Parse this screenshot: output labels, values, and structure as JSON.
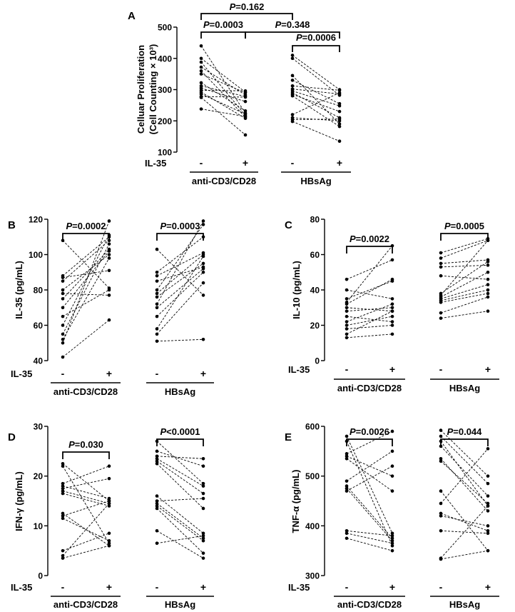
{
  "chart_data": [
    {
      "panel": "A",
      "type": "scatter",
      "ylabel": [
        "Celluar Proliferation",
        "(Cell Counting × 10³)"
      ],
      "ylim": [
        100,
        500
      ],
      "yticks": [
        100,
        200,
        300,
        400,
        500
      ],
      "treatment": "IL-35",
      "conditions": [
        "-",
        "+"
      ],
      "groups": [
        {
          "name": "anti-CD3/CD28",
          "pairs": [
            [
              440,
              225
            ],
            [
              400,
              292
            ],
            [
              388,
              218
            ],
            [
              372,
              283
            ],
            [
              360,
              212
            ],
            [
              350,
              290
            ],
            [
              322,
              232
            ],
            [
              312,
              278
            ],
            [
              305,
              262
            ],
            [
              298,
              296
            ],
            [
              292,
              208
            ],
            [
              286,
              222
            ],
            [
              278,
              276
            ],
            [
              275,
              155
            ],
            [
              238,
              214
            ]
          ]
        },
        {
          "name": "HBsAg",
          "pairs": [
            [
              410,
              300
            ],
            [
              400,
              282
            ],
            [
              345,
              190
            ],
            [
              330,
              255
            ],
            [
              312,
              298
            ],
            [
              302,
              286
            ],
            [
              296,
              248
            ],
            [
              290,
              210
            ],
            [
              285,
              230
            ],
            [
              280,
              182
            ],
            [
              220,
              290
            ],
            [
              210,
              200
            ],
            [
              204,
              206
            ],
            [
              198,
              135
            ]
          ]
        }
      ],
      "comparisons": [
        {
          "between": [
            0,
            2
          ],
          "p": "P",
          "text": "=0.162"
        },
        {
          "between": [
            0,
            1
          ],
          "p": "P",
          "text": "=0.0003"
        },
        {
          "between": [
            1,
            3
          ],
          "p": "P",
          "text": "=0.348"
        },
        {
          "between": [
            2,
            3
          ],
          "p": "P",
          "text": "=0.0006"
        }
      ]
    },
    {
      "panel": "B",
      "type": "scatter",
      "ylabel": [
        "IL-35 (pg/mL)"
      ],
      "ylim": [
        40,
        120
      ],
      "yticks": [
        40,
        60,
        80,
        100,
        120
      ],
      "treatment": "IL-35",
      "conditions": [
        "-",
        "+"
      ],
      "groups": [
        {
          "name": "anti-CD3/CD28",
          "pairs": [
            [
              108,
              81
            ],
            [
              88,
              110
            ],
            [
              87,
              91
            ],
            [
              85,
              108
            ],
            [
              80,
              100
            ],
            [
              78,
              77
            ],
            [
              75,
              103
            ],
            [
              70,
              102
            ],
            [
              65,
              80
            ],
            [
              60,
              111
            ],
            [
              55,
              106
            ],
            [
              52,
              98
            ],
            [
              50,
              119
            ],
            [
              42,
              63
            ]
          ]
        },
        {
          "name": "HBsAg",
          "pairs": [
            [
              103,
              77
            ],
            [
              90,
              110
            ],
            [
              88,
              101
            ],
            [
              85,
              93
            ],
            [
              80,
              117
            ],
            [
              78,
              100
            ],
            [
              76,
              95
            ],
            [
              72,
              119
            ],
            [
              70,
              92
            ],
            [
              65,
              90
            ],
            [
              58,
              99
            ],
            [
              55,
              84
            ],
            [
              51,
              52
            ]
          ]
        }
      ],
      "comparisons": [
        {
          "between": [
            0,
            1
          ],
          "p": "P",
          "text": "=0.0002"
        },
        {
          "between": [
            2,
            3
          ],
          "p": "P",
          "text": "=0.0003"
        }
      ]
    },
    {
      "panel": "C",
      "type": "scatter",
      "ylabel": [
        "IL-10 (pg/mL)"
      ],
      "ylim": [
        0,
        80
      ],
      "yticks": [
        0,
        20,
        40,
        60,
        80
      ],
      "treatment": "IL-35",
      "conditions": [
        "-",
        "+"
      ],
      "groups": [
        {
          "name": "anti-CD3/CD28",
          "pairs": [
            [
              46,
              57
            ],
            [
              40,
              35
            ],
            [
              35,
              45
            ],
            [
              33,
              65
            ],
            [
              32,
              46
            ],
            [
              30,
              28
            ],
            [
              28,
              30
            ],
            [
              25,
              22
            ],
            [
              22,
              32
            ],
            [
              20,
              25
            ],
            [
              18,
              20
            ],
            [
              15,
              28
            ],
            [
              13,
              15
            ]
          ]
        },
        {
          "name": "HBsAg",
          "pairs": [
            [
              61,
              69
            ],
            [
              58,
              68
            ],
            [
              55,
              57
            ],
            [
              53,
              54
            ],
            [
              48,
              46
            ],
            [
              38,
              56
            ],
            [
              37,
              68
            ],
            [
              36,
              50
            ],
            [
              35,
              43
            ],
            [
              34,
              40
            ],
            [
              33,
              38
            ],
            [
              27,
              36
            ],
            [
              24,
              28
            ]
          ]
        }
      ],
      "comparisons": [
        {
          "between": [
            0,
            1
          ],
          "p": "P",
          "text": "=0.0022"
        },
        {
          "between": [
            2,
            3
          ],
          "p": "P",
          "text": "=0.0005"
        }
      ]
    },
    {
      "panel": "D",
      "type": "scatter",
      "ylabel": [
        "IFN-γ (pg/mL)"
      ],
      "ylim": [
        0,
        30
      ],
      "yticks": [
        0,
        10,
        20,
        30
      ],
      "treatment": "IL-35",
      "conditions": [
        "-",
        "+"
      ],
      "groups": [
        {
          "name": "anti-CD3/CD28",
          "pairs": [
            [
              22.5,
              15
            ],
            [
              22,
              6.5
            ],
            [
              18.5,
              22
            ],
            [
              18,
              15.5
            ],
            [
              17.5,
              19.5
            ],
            [
              17,
              14.5
            ],
            [
              16.5,
              14
            ],
            [
              12.5,
              6
            ],
            [
              12,
              15
            ],
            [
              11.5,
              7
            ],
            [
              5,
              8.5
            ],
            [
              4,
              14.5
            ],
            [
              3.5,
              6
            ]
          ]
        },
        {
          "name": "HBsAg",
          "pairs": [
            [
              27,
              18.5
            ],
            [
              25,
              22
            ],
            [
              24,
              23.5
            ],
            [
              23.5,
              18
            ],
            [
              23,
              16.5
            ],
            [
              22.5,
              13.5
            ],
            [
              16,
              8.5
            ],
            [
              15,
              15.5
            ],
            [
              14.5,
              7.5
            ],
            [
              14,
              7
            ],
            [
              13.5,
              4.5
            ],
            [
              9,
              3.5
            ],
            [
              6.5,
              8
            ]
          ]
        }
      ],
      "comparisons": [
        {
          "between": [
            0,
            1
          ],
          "p": "P",
          "text": "=0.030"
        },
        {
          "between": [
            2,
            3
          ],
          "p": "P",
          "text": "<0.0001"
        }
      ]
    },
    {
      "panel": "E",
      "type": "scatter",
      "ylabel": [
        "TNF-α (pg/mL)"
      ],
      "ylim": [
        300,
        600
      ],
      "yticks": [
        300,
        400,
        500,
        600
      ],
      "treatment": "IL-35",
      "conditions": [
        "-",
        "+"
      ],
      "groups": [
        {
          "name": "anti-CD3/CD28",
          "pairs": [
            [
              580,
              385
            ],
            [
              570,
              360
            ],
            [
              545,
              590
            ],
            [
              540,
              500
            ],
            [
              535,
              470
            ],
            [
              490,
              550
            ],
            [
              480,
              375
            ],
            [
              475,
              370
            ],
            [
              470,
              520
            ],
            [
              390,
              380
            ],
            [
              385,
              365
            ],
            [
              375,
              350
            ]
          ]
        },
        {
          "name": "HBsAg",
          "pairs": [
            [
              592,
              500
            ],
            [
              580,
              485
            ],
            [
              570,
              440
            ],
            [
              560,
              460
            ],
            [
              535,
              430
            ],
            [
              530,
              445
            ],
            [
              470,
              350
            ],
            [
              445,
              555
            ],
            [
              425,
              390
            ],
            [
              420,
              400
            ],
            [
              390,
              385
            ],
            [
              335,
              440
            ],
            [
              333,
              350
            ]
          ]
        }
      ],
      "comparisons": [
        {
          "between": [
            0,
            1
          ],
          "p": "P",
          "text": "=0.0026"
        },
        {
          "between": [
            2,
            3
          ],
          "p": "P",
          "text": "=0.044"
        }
      ]
    }
  ]
}
